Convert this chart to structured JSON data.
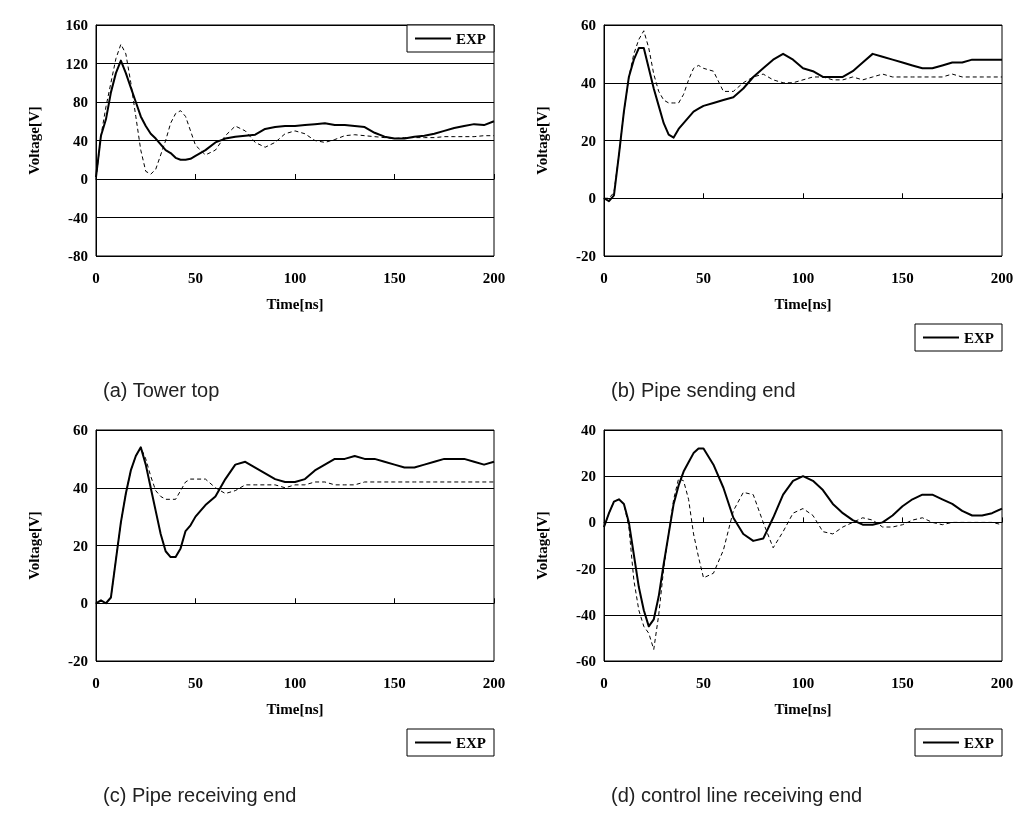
{
  "chart_data": [
    {
      "type": "line",
      "title": "(a) Tower top",
      "xlabel": "Time[ns]",
      "ylabel": "Voltage[V]",
      "xlim": [
        0,
        200
      ],
      "xticks": [
        0,
        50,
        100,
        150,
        200
      ],
      "ylim": [
        -80,
        160
      ],
      "yticks": [
        -80,
        -40,
        0,
        40,
        80,
        120,
        160
      ],
      "grid": "y",
      "legend": "top right",
      "marker": "none",
      "x": [
        0,
        2.5,
        5,
        7.5,
        10,
        12.5,
        15,
        17.5,
        20,
        22.5,
        25,
        27.5,
        30,
        32.5,
        35,
        37.5,
        40,
        42.5,
        45,
        47.5,
        50,
        55,
        60,
        65,
        70,
        75,
        80,
        85,
        90,
        95,
        100,
        105,
        110,
        115,
        120,
        125,
        130,
        135,
        140,
        145,
        150,
        155,
        160,
        165,
        170,
        175,
        180,
        185,
        190,
        195,
        200
      ],
      "series": [
        {
          "name": "EXP",
          "color": "#000000",
          "line_style": "solid",
          "values": [
            2,
            45,
            62,
            90,
            110,
            123,
            110,
            95,
            80,
            65,
            55,
            47,
            42,
            36,
            30,
            27,
            22,
            20,
            20,
            21,
            24,
            30,
            38,
            42,
            44,
            45,
            46,
            52,
            54,
            55,
            55,
            56,
            57,
            58,
            56,
            56,
            55,
            54,
            48,
            44,
            42,
            42,
            44,
            45,
            47,
            50,
            53,
            55,
            57,
            56,
            60
          ]
        },
        {
          "color": "#000000",
          "line_style": "dashed",
          "values": [
            0,
            45,
            75,
            100,
            125,
            140,
            130,
            100,
            65,
            30,
            8,
            5,
            10,
            25,
            40,
            58,
            68,
            71,
            65,
            50,
            35,
            25,
            30,
            45,
            55,
            50,
            38,
            33,
            38,
            47,
            50,
            47,
            40,
            38,
            41,
            45,
            46,
            45,
            44,
            43,
            42,
            43,
            43,
            43,
            43,
            44,
            44,
            44,
            44,
            45,
            45
          ]
        }
      ]
    },
    {
      "type": "line",
      "title": "(b) Pipe sending end",
      "xlabel": "Time[ns]",
      "ylabel": "Voltage[V]",
      "xlim": [
        0,
        200
      ],
      "xticks": [
        0,
        50,
        100,
        150,
        200
      ],
      "ylim": [
        -20,
        60
      ],
      "yticks": [
        -20,
        0,
        20,
        40,
        60
      ],
      "grid": "y",
      "legend": "bottom right",
      "marker": "none",
      "x": [
        0,
        2.5,
        5,
        7.5,
        10,
        12.5,
        15,
        17.5,
        20,
        22.5,
        25,
        27.5,
        30,
        32.5,
        35,
        37.5,
        40,
        42.5,
        45,
        47.5,
        50,
        55,
        60,
        65,
        70,
        75,
        80,
        85,
        90,
        95,
        100,
        105,
        110,
        115,
        120,
        125,
        130,
        135,
        140,
        145,
        150,
        155,
        160,
        165,
        170,
        175,
        180,
        185,
        190,
        195,
        200
      ],
      "series": [
        {
          "name": "EXP",
          "color": "#000000",
          "line_style": "solid",
          "values": [
            0,
            -1,
            1,
            15,
            30,
            42,
            48,
            52,
            52,
            45,
            38,
            32,
            26,
            22,
            21,
            24,
            26,
            28,
            30,
            31,
            32,
            33,
            34,
            35,
            38,
            42,
            45,
            48,
            50,
            48,
            45,
            44,
            42,
            42,
            42,
            44,
            47,
            50,
            49,
            48,
            47,
            46,
            45,
            45,
            46,
            47,
            47,
            48,
            48,
            48,
            48
          ]
        },
        {
          "color": "#000000",
          "line_style": "dashed",
          "values": [
            0,
            0,
            2,
            15,
            30,
            42,
            50,
            55,
            58,
            52,
            43,
            37,
            34,
            33,
            33,
            33,
            36,
            41,
            45,
            46,
            45,
            44,
            37,
            37,
            40,
            42,
            43,
            41,
            40,
            40,
            41,
            42,
            42,
            41,
            41,
            42,
            41,
            42,
            43,
            42,
            42,
            42,
            42,
            42,
            42,
            43,
            42,
            42,
            42,
            42,
            42
          ]
        }
      ]
    },
    {
      "type": "line",
      "title": "(c) Pipe receiving end",
      "xlabel": "Time[ns]",
      "ylabel": "Voltage[V]",
      "xlim": [
        0,
        200
      ],
      "xticks": [
        0,
        50,
        100,
        150,
        200
      ],
      "ylim": [
        -20,
        60
      ],
      "yticks": [
        -20,
        0,
        20,
        40,
        60
      ],
      "grid": "y",
      "legend": "bottom right",
      "marker": "none",
      "x": [
        0,
        2.5,
        5,
        7.5,
        10,
        12.5,
        15,
        17.5,
        20,
        22.5,
        25,
        27.5,
        30,
        32.5,
        35,
        37.5,
        40,
        42.5,
        45,
        47.5,
        50,
        55,
        60,
        65,
        70,
        75,
        80,
        85,
        90,
        95,
        100,
        105,
        110,
        115,
        120,
        125,
        130,
        135,
        140,
        145,
        150,
        155,
        160,
        165,
        170,
        175,
        180,
        185,
        190,
        195,
        200
      ],
      "series": [
        {
          "name": "EXP",
          "color": "#000000",
          "line_style": "solid",
          "values": [
            0,
            1,
            0,
            2,
            15,
            28,
            38,
            46,
            51,
            54,
            48,
            40,
            32,
            24,
            18,
            16,
            16,
            19,
            25,
            27,
            30,
            34,
            37,
            43,
            48,
            49,
            47,
            45,
            43,
            42,
            42,
            43,
            46,
            48,
            50,
            50,
            51,
            50,
            50,
            49,
            48,
            47,
            47,
            48,
            49,
            50,
            50,
            50,
            49,
            48,
            49
          ]
        },
        {
          "color": "#000000",
          "line_style": "dashed",
          "values": [
            0,
            0,
            0,
            2,
            15,
            28,
            38,
            46,
            51,
            54,
            50,
            44,
            39,
            37,
            36,
            36,
            36,
            39,
            42,
            43,
            43,
            43,
            40,
            38,
            39,
            41,
            41,
            41,
            41,
            40,
            41,
            41,
            42,
            42,
            41,
            41,
            41,
            42,
            42,
            42,
            42,
            42,
            42,
            42,
            42,
            42,
            42,
            42,
            42,
            42,
            42
          ]
        }
      ]
    },
    {
      "type": "line",
      "title": "(d) control line receiving end",
      "xlabel": "Time[ns]",
      "ylabel": "Voltage[V]",
      "xlim": [
        0,
        200
      ],
      "xticks": [
        0,
        50,
        100,
        150,
        200
      ],
      "ylim": [
        -60,
        40
      ],
      "yticks": [
        -60,
        -40,
        -20,
        0,
        20,
        40
      ],
      "grid": "y",
      "legend": "bottom right",
      "marker": "none",
      "x": [
        0,
        2.5,
        5,
        7.5,
        10,
        12.5,
        15,
        17.5,
        20,
        22.5,
        25,
        27.5,
        30,
        32.5,
        35,
        37.5,
        40,
        42.5,
        45,
        47.5,
        50,
        55,
        60,
        65,
        70,
        75,
        80,
        85,
        90,
        95,
        100,
        105,
        110,
        115,
        120,
        125,
        130,
        135,
        140,
        145,
        150,
        155,
        160,
        165,
        170,
        175,
        180,
        185,
        190,
        195,
        200
      ],
      "series": [
        {
          "name": "EXP",
          "color": "#000000",
          "line_style": "solid",
          "values": [
            -2,
            4,
            9,
            10,
            8,
            0,
            -14,
            -28,
            -38,
            -45,
            -42,
            -32,
            -18,
            -5,
            8,
            16,
            22,
            26,
            30,
            32,
            32,
            25,
            15,
            2,
            -5,
            -8,
            -7,
            2,
            12,
            18,
            20,
            18,
            14,
            8,
            4,
            1,
            -1,
            -1,
            0,
            3,
            7,
            10,
            12,
            12,
            10,
            8,
            5,
            3,
            3,
            4,
            6
          ]
        },
        {
          "color": "#000000",
          "line_style": "dashed",
          "values": [
            -2,
            4,
            9,
            10,
            8,
            -2,
            -25,
            -38,
            -45,
            -48,
            -55,
            -40,
            -20,
            -5,
            10,
            19,
            18,
            10,
            -5,
            -15,
            -24,
            -22,
            -12,
            5,
            13,
            12,
            0,
            -11,
            -4,
            4,
            6,
            3,
            -4,
            -5,
            -2,
            0,
            2,
            1,
            -2,
            -2,
            -1,
            1,
            2,
            0,
            -1,
            0,
            0,
            0,
            0,
            0,
            -1
          ]
        }
      ]
    }
  ]
}
